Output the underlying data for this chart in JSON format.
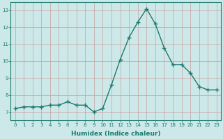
{
  "x": [
    0,
    1,
    2,
    3,
    4,
    5,
    6,
    7,
    8,
    9,
    10,
    11,
    12,
    13,
    14,
    15,
    16,
    17,
    18,
    19,
    20,
    21,
    22,
    23
  ],
  "y": [
    7.2,
    7.3,
    7.3,
    7.3,
    7.4,
    7.4,
    7.6,
    7.4,
    7.4,
    7.0,
    7.2,
    8.6,
    10.1,
    11.4,
    12.3,
    13.1,
    12.2,
    10.8,
    9.8,
    9.8,
    9.3,
    8.5,
    8.3,
    8.3
  ],
  "xlabel": "Humidex (Indice chaleur)",
  "xlim": [
    -0.5,
    23.5
  ],
  "ylim": [
    6.5,
    13.5
  ],
  "yticks": [
    7,
    8,
    9,
    10,
    11,
    12,
    13
  ],
  "xticks": [
    0,
    1,
    2,
    3,
    4,
    5,
    6,
    7,
    8,
    9,
    10,
    11,
    12,
    13,
    14,
    15,
    16,
    17,
    18,
    19,
    20,
    21,
    22,
    23
  ],
  "line_color": "#1a7a6e",
  "bg_color": "#cde8e8",
  "grid_color": "#c8a0a0",
  "marker": "+",
  "marker_size": 4,
  "line_width": 1.0,
  "tick_label_color": "#1a7a6e",
  "xlabel_color": "#1a7a6e",
  "tick_fontsize": 5.0,
  "ylabel_fontsize": 5.5,
  "xlabel_fontsize": 6.5
}
